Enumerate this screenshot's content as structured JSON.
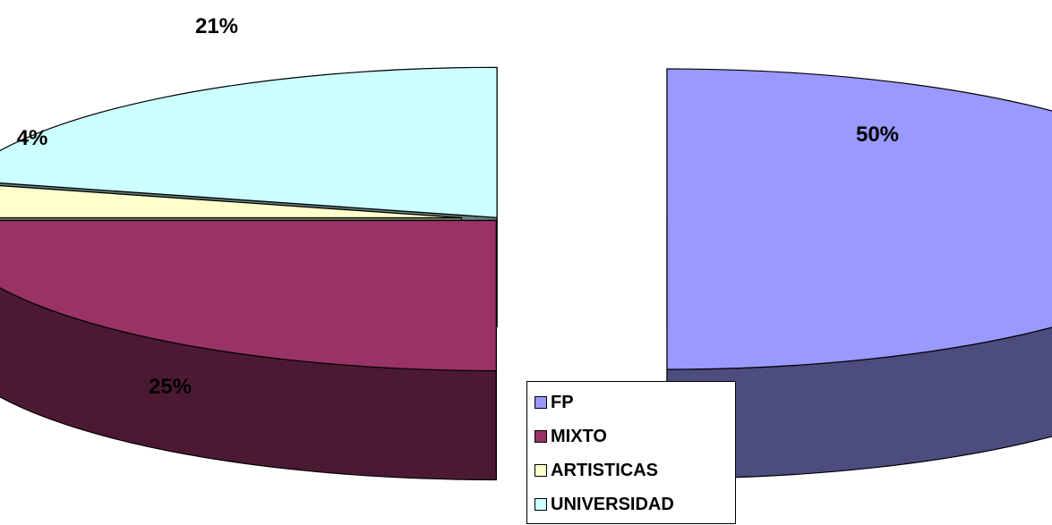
{
  "chart_data": {
    "type": "pie",
    "variant": "3d-exploded",
    "title": "",
    "legend_position": "bottom-center",
    "categories": [
      "FP",
      "MIXTO",
      "ARTISTICAS",
      "UNIVERSIDAD"
    ],
    "values": [
      50,
      25,
      4,
      21
    ],
    "labels": [
      "50%",
      "25%",
      "4%",
      "21%"
    ],
    "colors": [
      "#9999FF",
      "#993366",
      "#FFFFCC",
      "#CCFFFF"
    ],
    "side_colors": [
      "#4C4C7F",
      "#4C1933",
      "#7F7F66",
      "#667F7F"
    ]
  }
}
